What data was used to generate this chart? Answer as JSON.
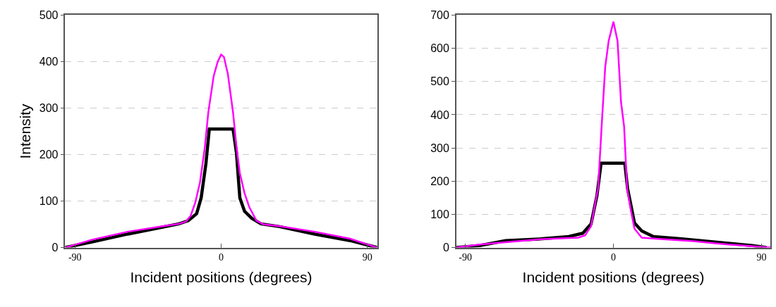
{
  "chart_data": [
    {
      "type": "line",
      "xlabel": "Incident positions (degrees)",
      "ylabel": "Intensity",
      "xlim": [
        -96,
        96
      ],
      "xticks": [
        -90,
        0,
        90
      ],
      "ylim": [
        0,
        500
      ],
      "yticks": [
        0,
        100,
        200,
        300,
        400,
        500
      ],
      "grid": "y",
      "marker": "none",
      "line_style": "solid",
      "series": [
        {
          "color": "#000000",
          "x": [
            -96,
            -79.4,
            -57.6,
            -35.9,
            -26,
            -20.2,
            -15.1,
            -12.3,
            -9.4,
            -7.3,
            7.3,
            9.4,
            11.5,
            14.4,
            18.8,
            24.5,
            36,
            57.6,
            79.4,
            96
          ],
          "values": [
            0,
            12,
            29,
            44,
            51,
            58,
            73,
            107,
            180,
            255,
            255,
            204,
            107,
            78,
            63,
            51,
            45,
            29,
            15,
            0
          ]
        },
        {
          "color": "#ff00ff",
          "x": [
            -96,
            -79.4,
            -57.6,
            -35.9,
            -26,
            -21.7,
            -18.8,
            -15.9,
            -13,
            -10.1,
            -7.9,
            -4.6,
            -2.1,
            0,
            1.7,
            4.1,
            7.3,
            9.4,
            11.5,
            14.4,
            17.3,
            21.7,
            26,
            36,
            57.7,
            79.4,
            96
          ],
          "values": [
            0,
            17,
            34,
            46,
            51,
            56,
            68,
            97,
            141,
            214,
            291,
            369,
            400,
            415,
            410,
            374,
            291,
            218,
            160,
            117,
            87,
            58,
            50,
            46,
            34,
            19,
            0
          ]
        }
      ]
    },
    {
      "type": "line",
      "xlabel": "Incident positions (degrees)",
      "xlim": [
        -95.5,
        95.5
      ],
      "xticks": [
        -90,
        0,
        90
      ],
      "ylim": [
        0,
        700
      ],
      "yticks": [
        0,
        100,
        200,
        300,
        400,
        500,
        600,
        700
      ],
      "grid": "y",
      "marker": "none",
      "line_style": "solid",
      "series": [
        {
          "color": "#000000",
          "x": [
            -95.5,
            -81.2,
            -65.5,
            -44.4,
            -27.2,
            -18.6,
            -13.6,
            -10,
            -7.5,
            6.9,
            8.6,
            12.8,
            17.2,
            24.3,
            41.5,
            62.9,
            84.3,
            93
          ],
          "values": [
            0,
            6,
            21,
            26,
            33,
            43,
            71,
            157,
            254,
            254,
            178,
            74,
            50,
            33,
            26,
            16,
            6,
            0
          ]
        },
        {
          "color": "#ff00ff",
          "x": [
            -95.5,
            -81.2,
            -65.5,
            -44.4,
            -21.4,
            -17.2,
            -13.6,
            -10.7,
            -9.3,
            -7.1,
            -5,
            -2.9,
            0,
            2.5,
            4.6,
            6.5,
            8.3,
            10.7,
            12.8,
            17.2,
            27.2,
            48.6,
            70,
            95.5
          ],
          "values": [
            0,
            9,
            16,
            25,
            30,
            37,
            64,
            143,
            178,
            371,
            543,
            622,
            680,
            622,
            439,
            364,
            178,
            109,
            57,
            30,
            26,
            19,
            9,
            0
          ]
        }
      ]
    }
  ]
}
